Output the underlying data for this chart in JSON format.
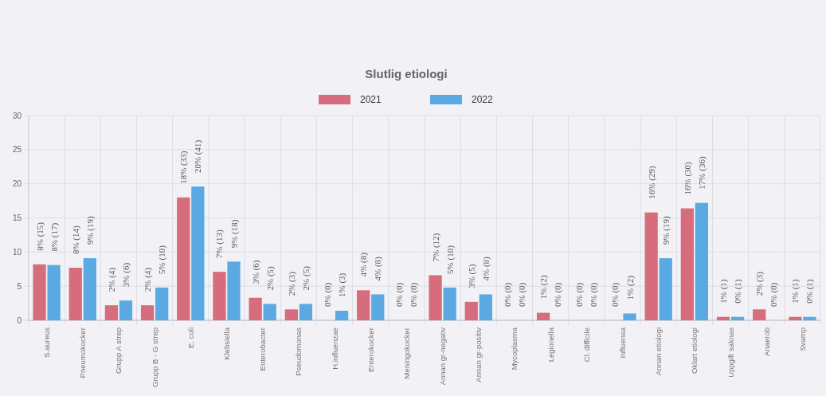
{
  "chart_data": {
    "type": "bar",
    "title": "Slutlig etiologi",
    "categories": [
      "S.aureus",
      "Pneumokocker",
      "Grupp A strep",
      "Grupp B - G strep",
      "E. coli",
      "Klebsiella",
      "Enterobacter",
      "Pseudomonas",
      "H.influenzae",
      "Enterokocker",
      "Meningokocker",
      "Annan gr-negativ",
      "Annan gr-positiv",
      "Mycoplasma",
      "Legionella",
      "Cl. difficile",
      "Influensa",
      "Annan etiologi",
      "Oklart etiologi",
      "Uppgift saknas",
      "Anaerob",
      "Svamp"
    ],
    "series": [
      {
        "name": "2021",
        "color": "#d66c7c",
        "values": [
          8.2,
          7.7,
          2.2,
          2.2,
          18.0,
          7.1,
          3.3,
          1.6,
          0,
          4.4,
          0,
          6.6,
          2.7,
          0,
          1.1,
          0,
          0,
          15.8,
          16.4,
          0.5,
          1.6,
          0.5
        ],
        "value_labels": [
          "8% (15)",
          "8% (14)",
          "2% (4)",
          "2% (4)",
          "18% (33)",
          "7% (13)",
          "3% (6)",
          "2% (3)",
          "0% (0)",
          "4% (8)",
          "0% (0)",
          "7% (12)",
          "3% (5)",
          "0% (0)",
          "1% (2)",
          "0% (0)",
          "0% (0)",
          "16% (29)",
          "16% (30)",
          "1% (1)",
          "2% (3)",
          "1% (1)"
        ]
      },
      {
        "name": "2022",
        "color": "#5aa9e2",
        "values": [
          8.1,
          9.1,
          2.9,
          4.8,
          19.6,
          8.6,
          2.4,
          2.4,
          1.4,
          3.8,
          0,
          4.8,
          3.8,
          0,
          0,
          0,
          1.0,
          9.1,
          17.2,
          0.5,
          0,
          0.5
        ],
        "value_labels": [
          "8% (17)",
          "9% (19)",
          "3% (6)",
          "5% (10)",
          "20% (41)",
          "9% (18)",
          "2% (5)",
          "2% (5)",
          "1% (3)",
          "4% (8)",
          "0% (0)",
          "5% (10)",
          "4% (8)",
          "0% (0)",
          "0% (0)",
          "0% (0)",
          "1% (2)",
          "9% (19)",
          "17% (36)",
          "0% (1)",
          "0% (0)",
          "0% (1)"
        ]
      }
    ],
    "ylim": [
      0,
      30
    ],
    "yticks": [
      0,
      5,
      10,
      15,
      20,
      25,
      30
    ],
    "grid": true,
    "legend": "top"
  }
}
